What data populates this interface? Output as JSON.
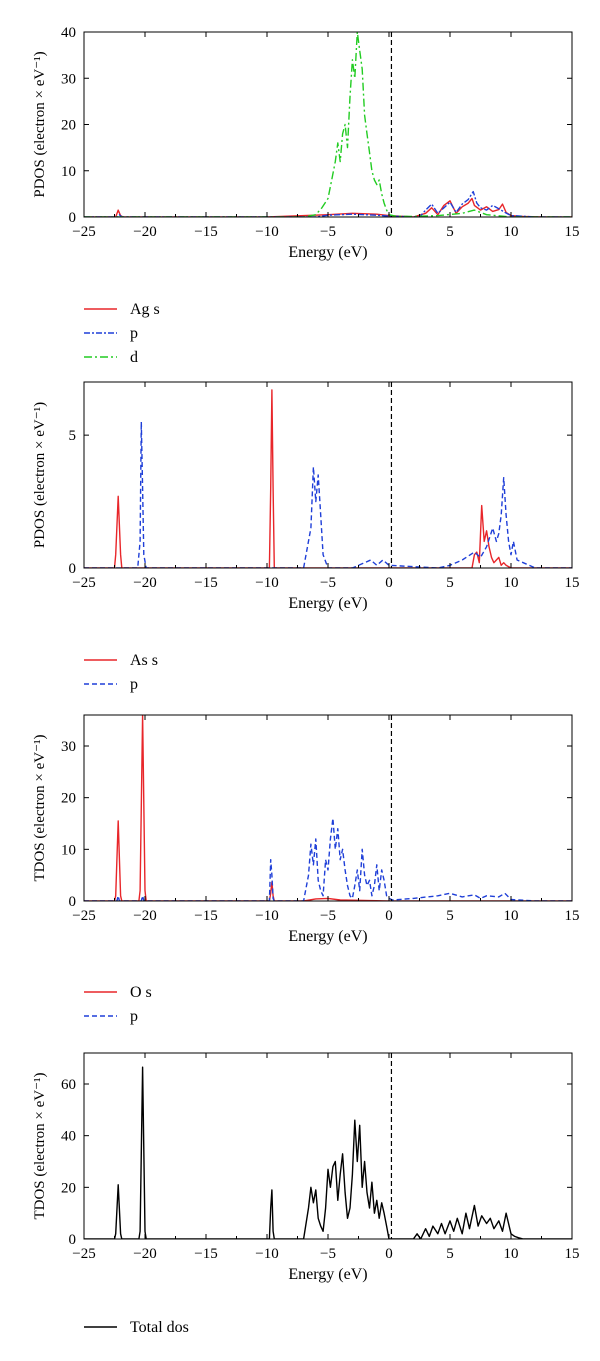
{
  "chart_data": [
    {
      "type": "line",
      "ylabel": "PDOS (electron × eV⁻¹)",
      "xlabel": "Energy (eV)",
      "xlim": [
        -25,
        15
      ],
      "ylim": [
        0,
        40
      ],
      "xticks": [
        "−25",
        "−20",
        "−15",
        "−10",
        "−5",
        "0",
        "5",
        "10",
        "15"
      ],
      "yticks": [
        "0",
        "10",
        "20",
        "30",
        "40"
      ],
      "fermi_line_x": 0.2,
      "legend": "below",
      "series": [
        {
          "name": "Ag s",
          "color": "#e8262a",
          "dash": "solid",
          "x": [
            -25,
            -22.4,
            -22.2,
            -22,
            -21.8,
            -10,
            -5,
            -3,
            -1,
            0,
            2,
            3,
            3.5,
            4,
            4.5,
            5,
            5.5,
            6,
            6.5,
            6.8,
            7,
            7.5,
            8,
            8.5,
            9,
            9.3,
            9.6,
            10,
            10.5,
            11,
            12.5,
            15
          ],
          "y": [
            0,
            0,
            1.5,
            0.3,
            0,
            0,
            0.5,
            0.8,
            0.6,
            0.3,
            0,
            0.8,
            2,
            0.5,
            2.5,
            3.5,
            0.8,
            2.2,
            3,
            4,
            2.5,
            1.5,
            2.2,
            1.2,
            1.6,
            2.8,
            1,
            0.3,
            0.2,
            0.1,
            0,
            0
          ]
        },
        {
          "name": "p",
          "color": "#1f3fd8",
          "dash": "6,2,2,2",
          "x": [
            -25,
            -22.3,
            -22.1,
            -21.9,
            -6,
            -5,
            -3,
            -1,
            0,
            2.5,
            3,
            3.5,
            4,
            4.5,
            5,
            5.5,
            6,
            6.5,
            6.9,
            7.2,
            7.5,
            8,
            8.5,
            9,
            9.5,
            10,
            12,
            15
          ],
          "y": [
            0,
            0,
            0.5,
            0,
            0,
            0.4,
            0.6,
            0.4,
            0.2,
            0,
            1.5,
            2.8,
            0.8,
            2,
            3.2,
            1,
            2.8,
            3.8,
            5.5,
            3,
            2,
            1.5,
            2.5,
            1.8,
            1,
            0.3,
            0,
            0
          ]
        },
        {
          "name": "d",
          "color": "#22cc22",
          "dash": "8,3,2,3",
          "x": [
            -25,
            -10,
            -7,
            -6,
            -5.5,
            -5,
            -4.7,
            -4.4,
            -4.2,
            -4,
            -3.8,
            -3.6,
            -3.4,
            -3.2,
            -3,
            -2.8,
            -2.6,
            -2.4,
            -2.2,
            -2,
            -1.8,
            -1.6,
            -1.4,
            -1.2,
            -1,
            -0.8,
            -0.6,
            -0.4,
            -0.2,
            0,
            0.5,
            2,
            4,
            6,
            7,
            8,
            10,
            15
          ],
          "y": [
            0,
            0,
            0,
            0.5,
            2,
            4,
            8,
            12,
            16,
            12,
            18,
            20,
            15,
            26,
            34,
            30,
            40,
            36,
            32,
            22,
            18,
            14,
            10,
            8,
            7,
            8,
            5,
            3,
            1.5,
            0.5,
            0.2,
            0.1,
            0.3,
            0.8,
            1.5,
            0.5,
            0,
            0
          ]
        }
      ]
    },
    {
      "type": "line",
      "ylabel": "PDOS (electron × eV⁻¹)",
      "xlabel": "Energy (eV)",
      "xlim": [
        -25,
        15
      ],
      "ylim": [
        0,
        7
      ],
      "xticks": [
        "−25",
        "−20",
        "−15",
        "−10",
        "−5",
        "0",
        "5",
        "10",
        "15"
      ],
      "yticks": [
        "0",
        "5"
      ],
      "fermi_line_x": 0.2,
      "legend": "below",
      "series": [
        {
          "name": "As s",
          "color": "#e8262a",
          "dash": "solid",
          "x": [
            -25,
            -22.5,
            -22.4,
            -22.2,
            -22,
            -21.9,
            -10,
            -9.8,
            -9.7,
            -9.6,
            -9.5,
            -9.4,
            -5,
            0,
            5,
            6.8,
            7,
            7.2,
            7.4,
            7.6,
            7.8,
            8,
            8.2,
            8.4,
            8.6,
            8.8,
            9,
            9.2,
            9.4,
            9.6,
            10,
            12,
            15
          ],
          "y": [
            0,
            0,
            0.5,
            2.7,
            0.5,
            0,
            0,
            0,
            3,
            6.7,
            3,
            0,
            0,
            0,
            0,
            0,
            0.5,
            0.6,
            0.2,
            2.35,
            1,
            1.4,
            0.8,
            0.4,
            0.2,
            0.3,
            0.4,
            0.1,
            0.2,
            0.1,
            0,
            0,
            0
          ]
        },
        {
          "name": "p",
          "color": "#1f3fd8",
          "dash": "5,3",
          "x": [
            -25,
            -20.6,
            -20.4,
            -20.3,
            -20.2,
            -20.1,
            -19.9,
            -7,
            -6.4,
            -6.2,
            -6,
            -5.8,
            -5.6,
            -5.4,
            -5,
            -3,
            -2,
            -1.5,
            -1,
            -0.5,
            0,
            4,
            5,
            6,
            7,
            7.5,
            8,
            8.5,
            8.8,
            9,
            9.2,
            9.4,
            9.6,
            9.8,
            10,
            10.2,
            10.5,
            12,
            15
          ],
          "y": [
            0,
            0,
            1,
            5.5,
            3,
            0.5,
            0,
            0,
            1.5,
            3.8,
            2.5,
            3.5,
            2,
            0.5,
            0,
            0,
            0.2,
            0.3,
            0.1,
            0.3,
            0.1,
            0,
            0.1,
            0.3,
            0.6,
            0.4,
            0.8,
            1.5,
            1,
            1.3,
            2,
            3.4,
            2,
            1,
            0.5,
            1,
            0.3,
            0,
            0
          ]
        }
      ]
    },
    {
      "type": "line",
      "ylabel": "TDOS (electron × eV⁻¹)",
      "xlabel": "Energy (eV)",
      "xlim": [
        -25,
        15
      ],
      "ylim": [
        0,
        36
      ],
      "xticks": [
        "−25",
        "−20",
        "−15",
        "−10",
        "−5",
        "0",
        "5",
        "10",
        "15"
      ],
      "yticks": [
        "0",
        "10",
        "20",
        "30"
      ],
      "fermi_line_x": 0.2,
      "legend": "below",
      "series": [
        {
          "name": "O s",
          "color": "#e8262a",
          "dash": "solid",
          "x": [
            -25,
            -22.5,
            -22.4,
            -22.2,
            -22,
            -21.9,
            -20.5,
            -20.4,
            -20.2,
            -20,
            -19.9,
            -10,
            -9.8,
            -9.7,
            -9.6,
            -9.5,
            -9.4,
            -7,
            -6,
            -5,
            -4,
            0,
            5,
            10,
            15
          ],
          "y": [
            0,
            0,
            1,
            15.5,
            1,
            0,
            0,
            2,
            36,
            2,
            0,
            0,
            0,
            1.5,
            3.7,
            1,
            0,
            0,
            0.4,
            0.5,
            0.2,
            0,
            0,
            0,
            0
          ]
        },
        {
          "name": "p",
          "color": "#1f3fd8",
          "dash": "5,3",
          "x": [
            -25,
            -22.3,
            -22.2,
            -22.1,
            -20.3,
            -20.2,
            -20.1,
            -10,
            -9.8,
            -9.7,
            -9.6,
            -9.5,
            -9.4,
            -7,
            -6.6,
            -6.4,
            -6.2,
            -6,
            -5.8,
            -5.6,
            -5.4,
            -5.2,
            -5,
            -4.8,
            -4.6,
            -4.4,
            -4.2,
            -4,
            -3.8,
            -3.6,
            -3.4,
            -3.2,
            -3,
            -2.8,
            -2.6,
            -2.4,
            -2.2,
            -2,
            -1.8,
            -1.6,
            -1.4,
            -1.2,
            -1,
            -0.8,
            -0.6,
            -0.4,
            -0.2,
            0,
            0.3,
            2,
            4,
            5,
            6,
            7,
            7.5,
            8,
            9,
            9.5,
            10,
            12,
            15
          ],
          "y": [
            0,
            0,
            1,
            0,
            0,
            1,
            0,
            0,
            0,
            8,
            5,
            0.5,
            0,
            0,
            5,
            11,
            7,
            12,
            4,
            2,
            1,
            8,
            6,
            12,
            16,
            10,
            14,
            8,
            10,
            6,
            3,
            1,
            0.5,
            3,
            6,
            2,
            10,
            5,
            3,
            4,
            1,
            3,
            7,
            2,
            6,
            4,
            1,
            0.5,
            0.2,
            0.5,
            1,
            1.5,
            0.8,
            1.2,
            0.5,
            1,
            0.8,
            1.5,
            0.3,
            0,
            0
          ]
        }
      ]
    },
    {
      "type": "line",
      "ylabel": "TDOS (electron × eV⁻¹)",
      "xlabel": "Energy (eV)",
      "xlim": [
        -25,
        15
      ],
      "ylim": [
        0,
        72
      ],
      "xticks": [
        "−25",
        "−20",
        "−15",
        "−10",
        "−5",
        "0",
        "5",
        "10",
        "15"
      ],
      "yticks": [
        "0",
        "20",
        "40",
        "60"
      ],
      "fermi_line_x": 0.2,
      "legend": "below",
      "series": [
        {
          "name": "Total dos",
          "color": "#000000",
          "dash": "solid",
          "x": [
            -25,
            -22.5,
            -22.4,
            -22.2,
            -22,
            -21.9,
            -20.5,
            -20.4,
            -20.2,
            -20,
            -19.9,
            -10,
            -9.8,
            -9.7,
            -9.6,
            -9.5,
            -9.4,
            -7,
            -6.6,
            -6.4,
            -6.2,
            -6,
            -5.8,
            -5.6,
            -5.4,
            -5.2,
            -5,
            -4.8,
            -4.6,
            -4.4,
            -4.2,
            -4,
            -3.8,
            -3.6,
            -3.4,
            -3.2,
            -3,
            -2.8,
            -2.6,
            -2.4,
            -2.2,
            -2,
            -1.8,
            -1.6,
            -1.4,
            -1.2,
            -1,
            -0.8,
            -0.6,
            -0.4,
            -0.2,
            0,
            0.3,
            2,
            2.3,
            2.6,
            3,
            3.3,
            3.6,
            4,
            4.3,
            4.6,
            5,
            5.3,
            5.6,
            6,
            6.3,
            6.6,
            7,
            7.3,
            7.6,
            8,
            8.3,
            8.6,
            9,
            9.3,
            9.6,
            10,
            10.3,
            10.6,
            11,
            15
          ],
          "y": [
            0,
            0,
            2,
            21,
            2,
            0,
            0,
            3,
            66.5,
            3,
            0,
            0,
            0,
            12,
            19,
            3,
            0,
            0,
            12,
            20,
            14,
            19,
            8,
            5,
            3,
            12,
            27,
            20,
            28,
            30,
            15,
            25,
            33,
            18,
            8,
            12,
            25,
            46,
            30,
            44,
            20,
            30,
            18,
            12,
            22,
            10,
            15,
            8,
            14,
            10,
            5,
            0,
            0,
            0,
            2,
            0,
            4,
            1,
            5,
            2,
            6,
            2,
            7,
            3,
            8,
            2,
            10,
            4,
            13,
            5,
            9,
            6,
            8,
            4,
            7,
            3,
            10,
            2,
            1,
            0.5,
            0,
            0
          ]
        }
      ]
    }
  ]
}
